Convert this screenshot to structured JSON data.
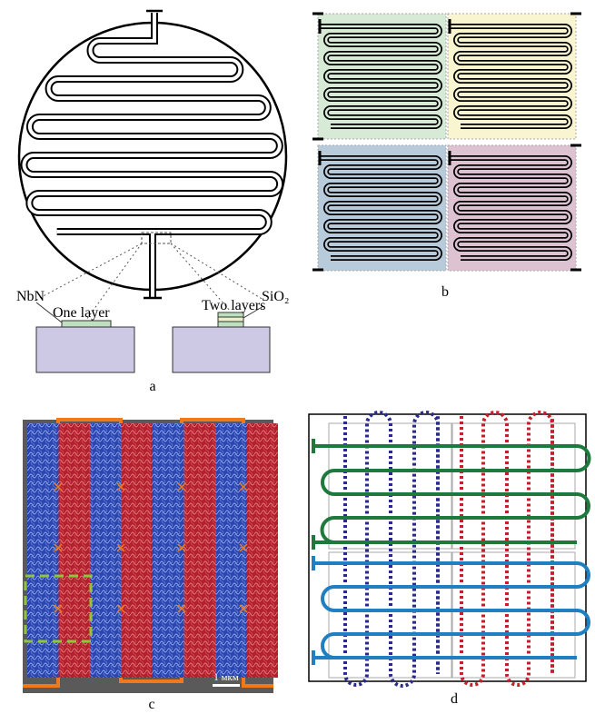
{
  "panels": [
    {
      "label": "a",
      "annotations": [
        "NbN",
        "One layer",
        "Two layers",
        "SiO₂"
      ]
    },
    {
      "label": "b"
    },
    {
      "label": "c",
      "scale_bar": "1 мкм"
    },
    {
      "label": "d"
    }
  ]
}
